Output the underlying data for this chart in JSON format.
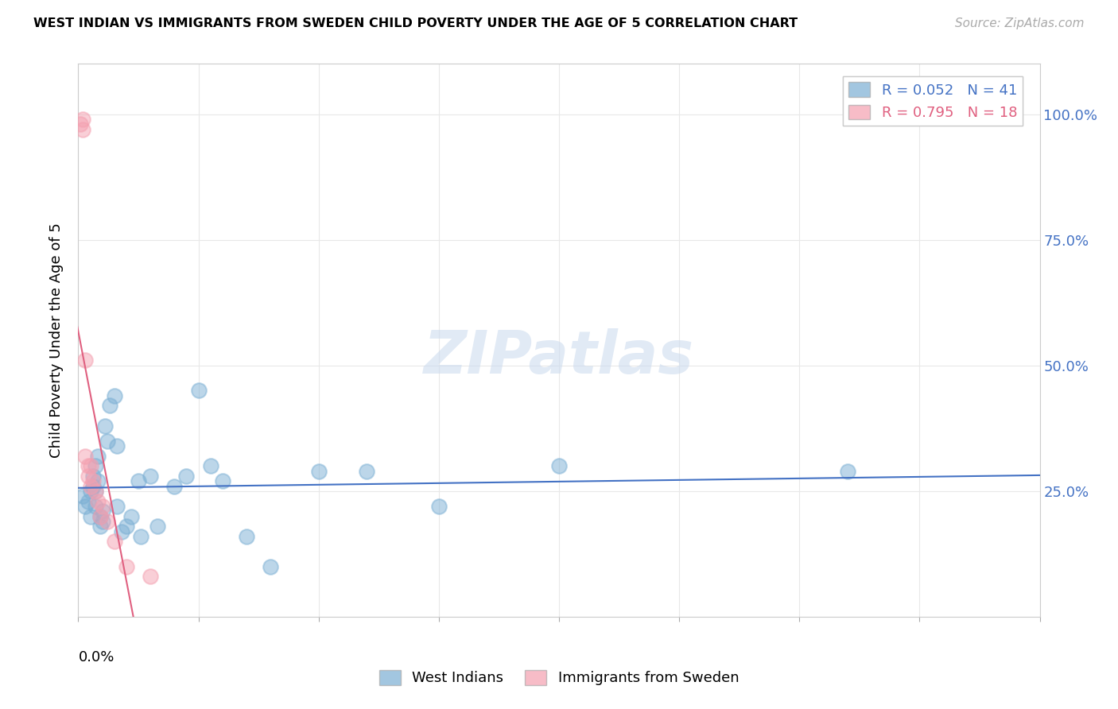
{
  "title": "WEST INDIAN VS IMMIGRANTS FROM SWEDEN CHILD POVERTY UNDER THE AGE OF 5 CORRELATION CHART",
  "source": "Source: ZipAtlas.com",
  "ylabel": "Child Poverty Under the Age of 5",
  "xlim": [
    0.0,
    0.4
  ],
  "ylim": [
    0.0,
    1.1
  ],
  "legend_r1": "R = 0.052   N = 41",
  "legend_r2": "R = 0.795   N = 18",
  "legend_label1": "West Indians",
  "legend_label2": "Immigrants from Sweden",
  "blue_color": "#7bafd4",
  "pink_color": "#f4a0b0",
  "blue_line_color": "#4472c4",
  "pink_line_color": "#e06080",
  "west_indians_x": [
    0.002,
    0.003,
    0.004,
    0.005,
    0.005,
    0.006,
    0.006,
    0.007,
    0.007,
    0.007,
    0.008,
    0.008,
    0.009,
    0.009,
    0.01,
    0.01,
    0.011,
    0.012,
    0.013,
    0.015,
    0.016,
    0.016,
    0.018,
    0.02,
    0.022,
    0.025,
    0.026,
    0.03,
    0.033,
    0.04,
    0.045,
    0.05,
    0.055,
    0.06,
    0.07,
    0.08,
    0.1,
    0.12,
    0.15,
    0.2,
    0.32
  ],
  "west_indians_y": [
    0.24,
    0.22,
    0.23,
    0.2,
    0.25,
    0.28,
    0.26,
    0.3,
    0.22,
    0.25,
    0.27,
    0.32,
    0.2,
    0.18,
    0.19,
    0.21,
    0.38,
    0.35,
    0.42,
    0.44,
    0.34,
    0.22,
    0.17,
    0.18,
    0.2,
    0.27,
    0.16,
    0.28,
    0.18,
    0.26,
    0.28,
    0.45,
    0.3,
    0.27,
    0.16,
    0.1,
    0.29,
    0.29,
    0.22,
    0.3,
    0.29
  ],
  "sweden_x": [
    0.001,
    0.002,
    0.002,
    0.003,
    0.003,
    0.004,
    0.004,
    0.005,
    0.005,
    0.006,
    0.007,
    0.008,
    0.009,
    0.01,
    0.012,
    0.015,
    0.02,
    0.03
  ],
  "sweden_y": [
    0.98,
    0.99,
    0.97,
    0.51,
    0.32,
    0.3,
    0.28,
    0.3,
    0.26,
    0.27,
    0.25,
    0.23,
    0.2,
    0.22,
    0.19,
    0.15,
    0.1,
    0.08
  ],
  "background_color": "#ffffff",
  "grid_color": "#e8e8e8",
  "watermark": "ZIPatlas",
  "watermark_color": "#cddcef"
}
